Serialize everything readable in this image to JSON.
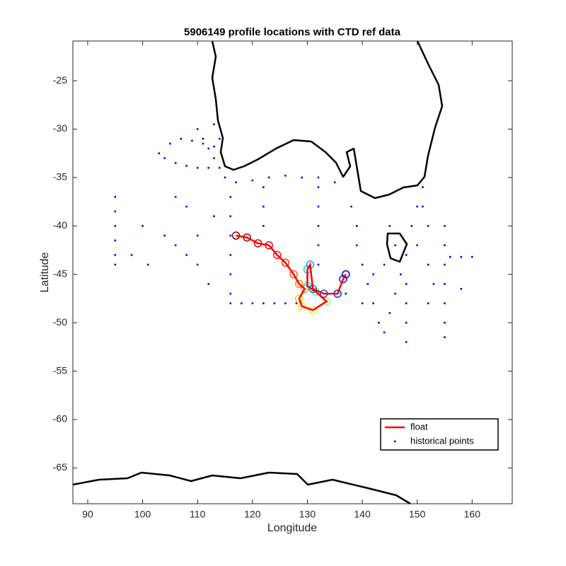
{
  "chart_data": {
    "type": "scatter",
    "title": "5906149 profile locations with CTD ref data",
    "x_label": "Longitude",
    "y_label": "Latitude",
    "xlim": [
      87.3,
      167.3
    ],
    "ylim": [
      -68.7,
      -20.9
    ],
    "xticks": [
      90,
      100,
      110,
      120,
      130,
      140,
      150,
      160
    ],
    "yticks": [
      -65,
      -60,
      -55,
      -50,
      -45,
      -40,
      -35,
      -30,
      -25
    ],
    "legend": "lower right",
    "series": [
      {
        "name": "float",
        "color": "#ff0000",
        "colormap": [
          "#800000",
          "#ff0000",
          "#ff8c00",
          "#ffff00",
          "#00ffff",
          "#0060ff",
          "#0000c0"
        ],
        "x": [
          117,
          119,
          121,
          123,
          124.5,
          126,
          127.5,
          128.5,
          129.5,
          128.5,
          129,
          131,
          133.5,
          131.5,
          130,
          130,
          130.5,
          131,
          133,
          135.5,
          136.5,
          137
        ],
        "y": [
          -41,
          -41.2,
          -41.8,
          -42,
          -43,
          -43.8,
          -45,
          -46,
          -46.5,
          -47.5,
          -48.3,
          -48.7,
          -47.8,
          -46.8,
          -46.2,
          -44.5,
          -44,
          -46.5,
          -47,
          -47,
          -45.5,
          -45
        ]
      },
      {
        "name": "historical points",
        "color": "#0000ff",
        "x": [
          110,
          111,
          112,
          113,
          114,
          115,
          114,
          113,
          103,
          105,
          107,
          109,
          111,
          113,
          104,
          106,
          108,
          110,
          112,
          117,
          120,
          123,
          126,
          129,
          132,
          135,
          95,
          95,
          95,
          95,
          95,
          95,
          116,
          116,
          116,
          116,
          116,
          116,
          116,
          118,
          120,
          122,
          124,
          126,
          128,
          122,
          122,
          122,
          132,
          132,
          132,
          132,
          132,
          98,
          100,
          101,
          104,
          106,
          108,
          110,
          112,
          110,
          113,
          106,
          108,
          139,
          140,
          141,
          142,
          143,
          144,
          145,
          146,
          147,
          148,
          149,
          150,
          151,
          151,
          152,
          150,
          152,
          153,
          152,
          155,
          155,
          155,
          155,
          155,
          155,
          155,
          156,
          158,
          160,
          148,
          148,
          148,
          148,
          158,
          138,
          139,
          137,
          140,
          142,
          145,
          146,
          144
        ],
        "y": [
          -30,
          -31,
          -32,
          -33,
          -34,
          -35,
          -31,
          -29.5,
          -32.5,
          -31.5,
          -31,
          -31.2,
          -31.5,
          -31.8,
          -33,
          -33.5,
          -33.8,
          -34,
          -34,
          -35.5,
          -35.3,
          -35,
          -34.8,
          -35,
          -35,
          -35.5,
          -37,
          -38.5,
          -40,
          -41.5,
          -43,
          -44,
          -37,
          -39,
          -41,
          -43,
          -45,
          -47,
          -48,
          -48,
          -48,
          -48,
          -48,
          -48,
          -48,
          -36,
          -38,
          -40,
          -36,
          -38,
          -40,
          -42,
          -44,
          -43,
          -40,
          -44,
          -41,
          -42,
          -43,
          -44,
          -46,
          -41,
          -39,
          -37,
          -38,
          -42,
          -44,
          -46,
          -48,
          -50,
          -51,
          -49,
          -47,
          -45,
          -43,
          -40,
          -38,
          -36,
          -38,
          -40,
          -42,
          -44,
          -46,
          -48,
          -40,
          -42,
          -44,
          -46,
          -48,
          -50,
          -51.5,
          -43.2,
          -43.2,
          -43.2,
          -46,
          -48,
          -50,
          -52,
          -46.5,
          -38,
          -40,
          -47,
          -48,
          -45,
          -40,
          -42,
          -44
        ]
      }
    ]
  }
}
